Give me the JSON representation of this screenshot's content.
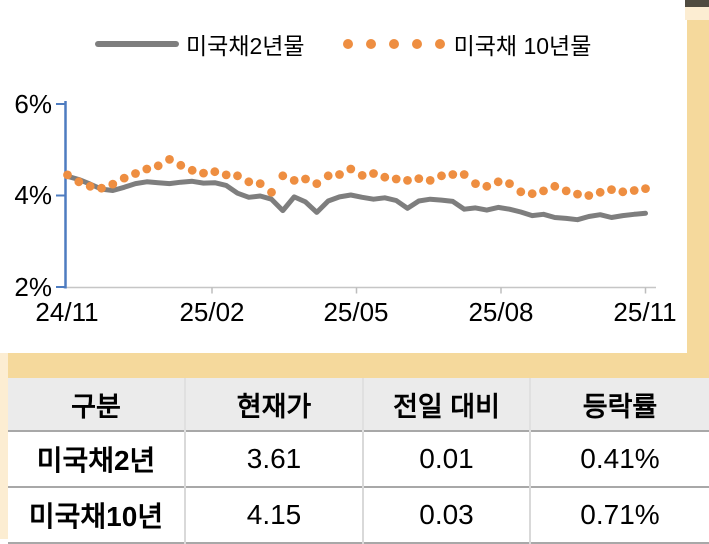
{
  "decor": {
    "dark_bar_color": "#4F4B40",
    "cream_color": "#FCEDD2",
    "tan_color": "#F5D99C"
  },
  "legend": {
    "series1_label": "미국채2년물",
    "series2_label": "미국채 10년물"
  },
  "chart_data": {
    "type": "line",
    "title": "",
    "x_start": "24/11",
    "x_end": "25/11",
    "x_unit": "weekly",
    "xticks": [
      "24/11",
      "25/02",
      "25/05",
      "25/08",
      "25/11"
    ],
    "yticks": [
      "6%",
      "4%",
      "2%"
    ],
    "ylim": [
      2,
      6
    ],
    "grid": false,
    "legend_position": "top",
    "axis_color": "#4E7CC0",
    "xaxis_line_color": "#C6C6C6",
    "series": [
      {
        "name": "미국채2년물",
        "style": "line",
        "color": "#7E7E7E",
        "values": [
          4.42,
          4.35,
          4.25,
          4.14,
          4.11,
          4.18,
          4.26,
          4.3,
          4.28,
          4.26,
          4.29,
          4.31,
          4.27,
          4.28,
          4.22,
          4.05,
          3.96,
          3.99,
          3.92,
          3.67,
          3.97,
          3.86,
          3.63,
          3.88,
          3.97,
          4.01,
          3.96,
          3.92,
          3.95,
          3.89,
          3.72,
          3.88,
          3.92,
          3.9,
          3.87,
          3.7,
          3.73,
          3.68,
          3.74,
          3.7,
          3.64,
          3.56,
          3.59,
          3.52,
          3.5,
          3.47,
          3.54,
          3.58,
          3.52,
          3.56,
          3.59,
          3.61
        ]
      },
      {
        "name": "미국채 10년물",
        "style": "dots",
        "color": "#EE8E41",
        "values": [
          4.45,
          4.3,
          4.2,
          4.16,
          4.25,
          4.38,
          4.48,
          4.58,
          4.65,
          4.79,
          4.66,
          4.55,
          4.49,
          4.52,
          4.45,
          4.43,
          4.3,
          4.26,
          4.07,
          4.43,
          4.33,
          4.36,
          4.26,
          4.43,
          4.46,
          4.58,
          4.44,
          4.48,
          4.4,
          4.36,
          4.33,
          4.37,
          4.33,
          4.43,
          4.46,
          4.46,
          4.26,
          4.2,
          4.3,
          4.26,
          4.08,
          4.04,
          4.1,
          4.2,
          4.1,
          4.03,
          4.0,
          4.07,
          4.13,
          4.08,
          4.11,
          4.15
        ]
      }
    ]
  },
  "table": {
    "headers": [
      "구분",
      "현재가",
      "전일 대비",
      "등락률"
    ],
    "rows": [
      {
        "name": "미국채2년",
        "price": "3.61",
        "change": "0.01",
        "rate": "0.41%"
      },
      {
        "name": "미국채10년",
        "price": "4.15",
        "change": "0.03",
        "rate": "0.71%"
      }
    ]
  }
}
